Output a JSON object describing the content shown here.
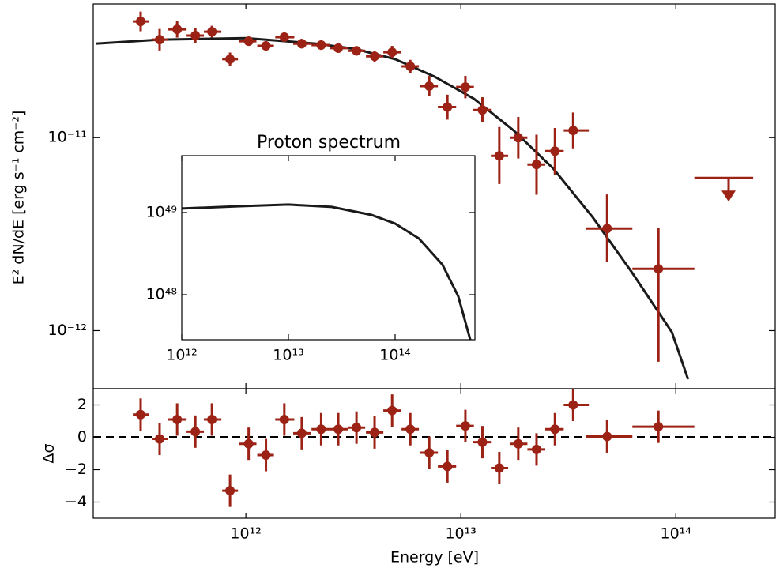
{
  "chart_data": [
    {
      "type": "errorbar",
      "xlabel": "Energy [eV]",
      "ylabel": "E² dN/dE [erg s⁻¹ cm⁻²]",
      "log_x": true,
      "log_y": true,
      "xlim": [
        195000000000.0,
        290000000000000.0
      ],
      "ylim": [
        5e-13,
        4.93e-11
      ],
      "xticks": [
        {
          "value": 1000000000000.0,
          "label": "10¹²"
        },
        {
          "value": 10000000000000.0,
          "label": "10¹³"
        },
        {
          "value": 100000000000000.0,
          "label": "10¹⁴"
        }
      ],
      "yticks": [
        {
          "value": 1e-12,
          "label": "10⁻¹²"
        },
        {
          "value": 1e-11,
          "label": "10⁻¹¹"
        }
      ],
      "color": "#9b2214",
      "x": [
        324000000000.0,
        397000000000.0,
        479000000000.0,
        582000000000.0,
        695000000000.0,
        844000000000.0,
        1030000000000.0,
        1240000000000.0,
        1510000000000.0,
        1820000000000.0,
        2240000000000.0,
        2690000000000.0,
        3270000000000.0,
        3970000000000.0,
        4790000000000.0,
        5820000000000.0,
        7130000000000.0,
        8660000000000.0,
        10500000000000.0,
        12600000000000.0,
        15100000000000.0,
        18500000000000.0,
        22500000000000.0,
        27400000000000.0,
        33300000000000.0,
        47900000000000.0,
        83000000000000.0
      ],
      "x_low": [
        298000000000.0,
        365000000000.0,
        436000000000.0,
        530000000000.0,
        638000000000.0,
        776000000000.0,
        927000000000.0,
        1130000000000.0,
        1370000000000.0,
        1660000000000.0,
        2020000000000.0,
        2450000000000.0,
        2980000000000.0,
        3620000000000.0,
        4360000000000.0,
        5300000000000.0,
        6440000000000.0,
        7820000000000.0,
        9510000000000.0,
        11400000000000.0,
        13800000000000.0,
        16900000000000.0,
        20400000000000.0,
        24700000000000.0,
        30100000000000.0,
        38100000000000.0,
        62800000000000.0
      ],
      "x_high": [
        353000000000.0,
        433000000000.0,
        530000000000.0,
        638000000000.0,
        769000000000.0,
        919000000000.0,
        1120000000000.0,
        1350000000000.0,
        1680000000000.0,
        2000000000000.0,
        2450000000000.0,
        2980000000000.0,
        3590000000000.0,
        4360000000000.0,
        5260000000000.0,
        6380000000000.0,
        7820000000000.0,
        9510000000000.0,
        11500000000000.0,
        13800000000000.0,
        16600000000000.0,
        20400000000000.0,
        24700000000000.0,
        30100000000000.0,
        39400000000000.0,
        62800000000000.0,
        122000000000000.0
      ],
      "values": [
        4e-11,
        3.22e-11,
        3.64e-11,
        3.38e-11,
        3.54e-11,
        2.55e-11,
        3.16e-11,
        2.99e-11,
        3.32e-11,
        3.07e-11,
        3.02e-11,
        2.91e-11,
        2.82e-11,
        2.64e-11,
        2.77e-11,
        2.34e-11,
        1.85e-11,
        1.44e-11,
        1.83e-11,
        1.39e-11,
        8.05e-12,
        1e-11,
        7.26e-12,
        8.52e-12,
        1.09e-11,
        3.38e-12,
        2.09e-12
      ],
      "yerr_low": [
        4.4e-12,
        3.9e-12,
        3.4e-12,
        2.8e-12,
        2.4e-12,
        2e-12,
        1.7e-12,
        1.6e-12,
        1.8e-12,
        1.7e-12,
        1.7e-12,
        1.6e-12,
        1.6e-12,
        1.7e-12,
        2e-12,
        1.8e-12,
        2.1e-12,
        2e-12,
        2.3e-12,
        1.9e-12,
        2.3e-12,
        2.2e-12,
        2.2e-12,
        2.1e-12,
        2.1e-12,
        1.1e-12,
        1.4e-12
      ],
      "yerr_high": [
        5e-12,
        4.4e-12,
        3.8e-12,
        3e-12,
        2.6e-12,
        2.1e-12,
        1.8e-12,
        1.7e-12,
        1.9e-12,
        1.8e-12,
        1.7e-12,
        1.7e-12,
        1.6e-12,
        1.8e-12,
        2.2e-12,
        1.9e-12,
        2.4e-12,
        2.3e-12,
        2.6e-12,
        2.3e-12,
        3.3e-12,
        2.8e-12,
        3.1e-12,
        2.7e-12,
        2.6e-12,
        1.7e-12,
        1.3e-12
      ],
      "upper_limit": {
        "x": 176000000000000.0,
        "x_low": 122000000000000.0,
        "x_high": 229000000000000.0,
        "value": 6.18e-12
      },
      "model": {
        "color": "#1a1a1a",
        "x": [
          200000000000.0,
          391000000000.0,
          1000000000000.0,
          2120000000000.0,
          3240000000000.0,
          4950000000000.0,
          7560000000000.0,
          11500000000000.0,
          17600000000000.0,
          26900000000000.0,
          41100000000000.0,
          62800000000000.0,
          95900000000000.0,
          114000000000000.0
        ],
        "values": [
          3.07e-11,
          3.22e-11,
          3.28e-11,
          3.07e-11,
          2.88e-11,
          2.55e-11,
          2.07e-11,
          1.59e-11,
          1.09e-11,
          6.92e-12,
          3.86e-12,
          1.99e-12,
          9.8e-13,
          5.6e-13
        ]
      },
      "residuals": {
        "ylabel": "Δσ",
        "ylim": [
          -5,
          3
        ],
        "yticks": [
          {
            "value": -4,
            "label": "−4"
          },
          {
            "value": -2,
            "label": "−2"
          },
          0,
          2
        ],
        "values": [
          1.4,
          -0.1,
          1.1,
          0.35,
          1.1,
          -3.3,
          -0.4,
          -1.1,
          1.1,
          0.25,
          0.5,
          0.5,
          0.6,
          0.3,
          1.65,
          0.5,
          -0.95,
          -1.8,
          0.7,
          -0.3,
          -1.9,
          -0.4,
          -0.75,
          0.5,
          2.0,
          0.05,
          0.65
        ],
        "yerr": [
          1,
          1,
          1,
          1,
          1,
          1,
          1,
          1,
          1,
          1,
          1,
          1,
          1,
          1,
          1,
          1,
          1,
          1,
          1,
          1,
          1,
          1,
          1,
          1,
          1,
          1,
          1
        ]
      }
    },
    {
      "type": "line",
      "title": "Proton spectrum",
      "log_x": true,
      "log_y": true,
      "xlim": [
        1000000000000.0,
        560000000000000.0
      ],
      "ylim": [
        2.83e+47,
        4.92e+49
      ],
      "xticks": [
        {
          "value": 1000000000000.0,
          "label": "10¹²"
        },
        {
          "value": 10000000000000.0,
          "label": "10¹³"
        },
        {
          "value": 100000000000000.0,
          "label": "10¹⁴"
        }
      ],
      "yticks": [
        {
          "value": 1e+48,
          "label": "10⁴⁸"
        },
        {
          "value": 1e+49,
          "label": "10⁴⁹"
        }
      ],
      "color": "#1a1a1a",
      "x": [
        1000000000000.0,
        3300000000000.0,
        10000000000000.0,
        25500000000000.0,
        60000000000000.0,
        100000000000000.0,
        167000000000000.0,
        278000000000000.0,
        391000000000000.0,
        506000000000000.0
      ],
      "values": [
        1.12e+49,
        1.19e+49,
        1.25e+49,
        1.17e+49,
        9.36e+48,
        7.33e+48,
        4.82e+48,
        2.32e+48,
        9.57e+47,
        2.83e+47
      ]
    }
  ]
}
